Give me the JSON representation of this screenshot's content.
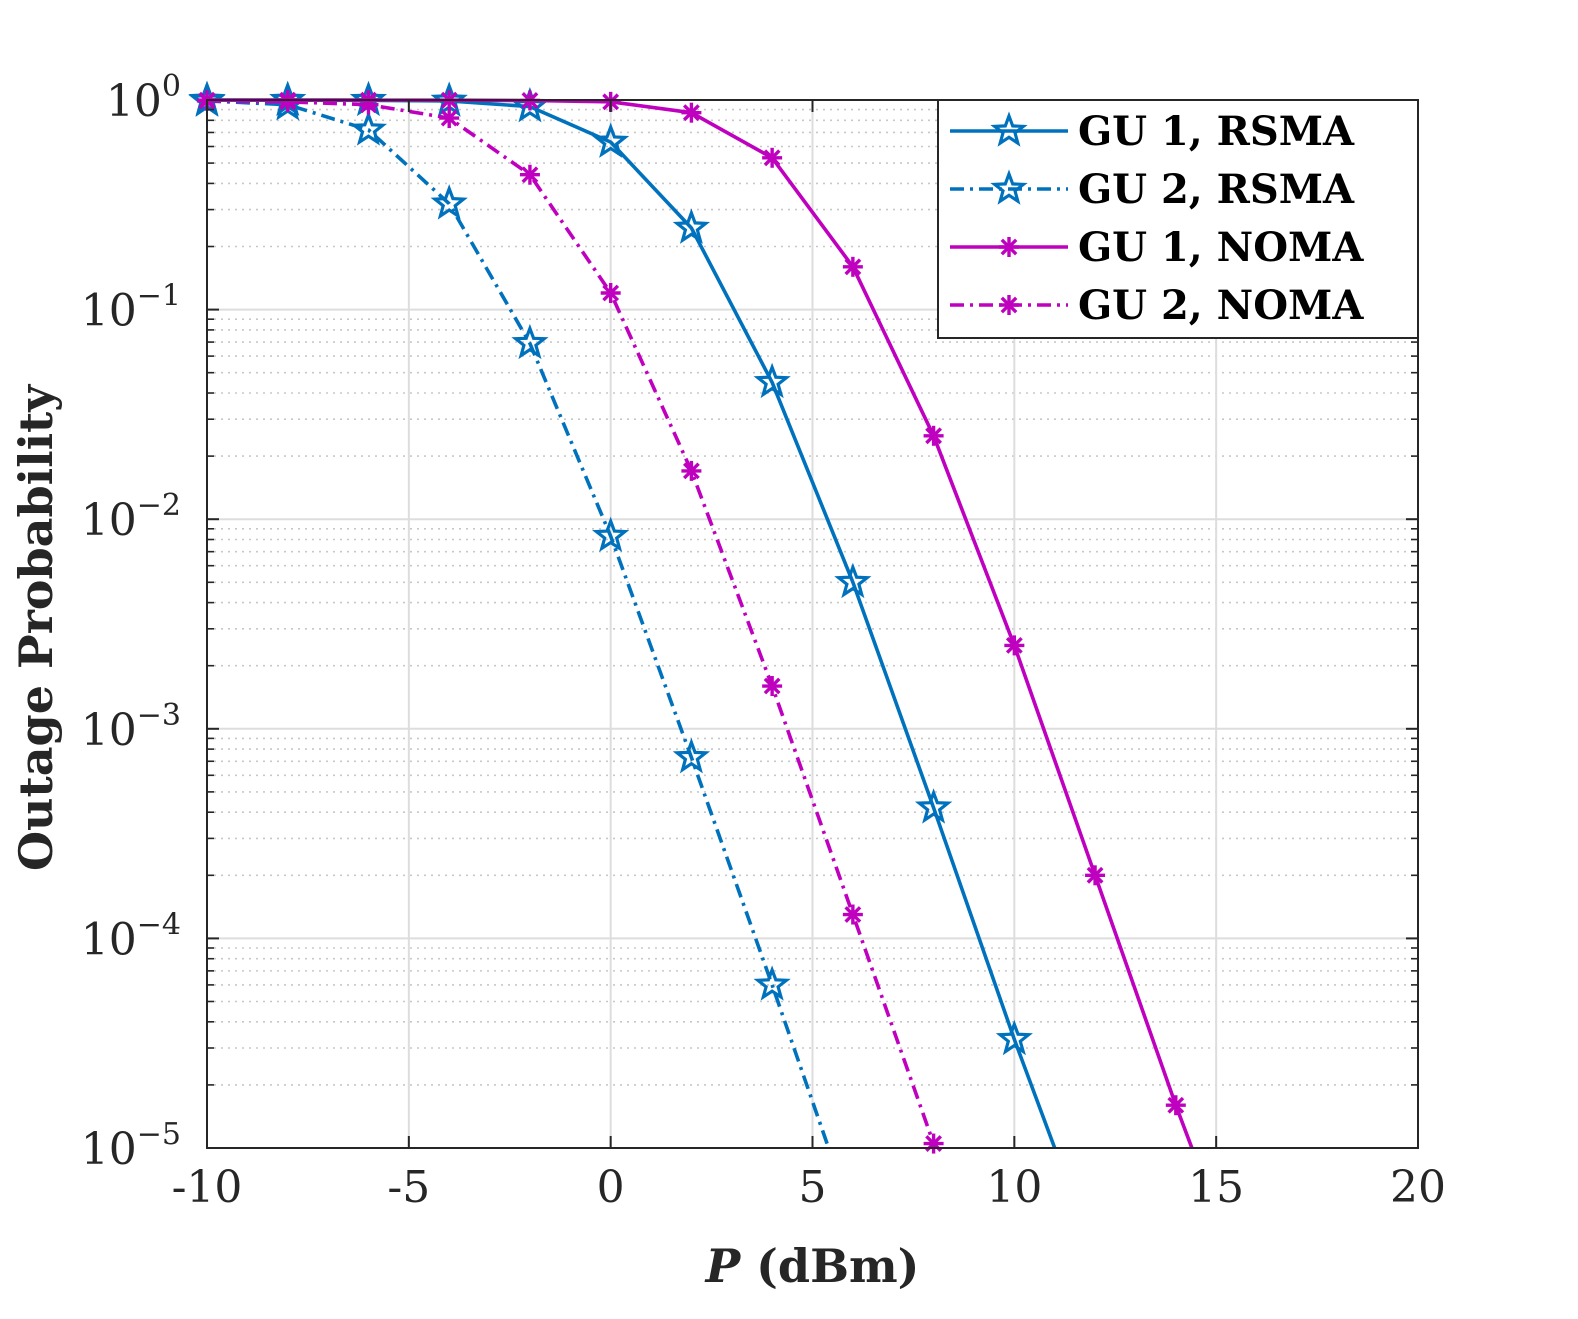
{
  "chart_data": {
    "type": "line",
    "title": "",
    "xlabel_var": "P",
    "xlabel_unit": "(dBm)",
    "ylabel": "Outage Probability",
    "xscale": "linear",
    "yscale": "log",
    "xlim": [
      -10,
      20
    ],
    "ylim": [
      1e-05,
      1
    ],
    "x_ticks": [
      -10,
      -5,
      0,
      5,
      10,
      15,
      20
    ],
    "x_tick_labels": [
      "-10",
      "-5",
      "0",
      "5",
      "10",
      "15",
      "20"
    ],
    "y_ticks": [
      1,
      0.1,
      0.01,
      0.001,
      0.0001,
      1e-05
    ],
    "y_tick_labels": [
      {
        "base": "10",
        "exp": "0"
      },
      {
        "base": "10",
        "exp": "−1"
      },
      {
        "base": "10",
        "exp": "−2"
      },
      {
        "base": "10",
        "exp": "−3"
      },
      {
        "base": "10",
        "exp": "−4"
      },
      {
        "base": "10",
        "exp": "−5"
      }
    ],
    "grid": true,
    "minor_grid": true,
    "legend_position": "top-right",
    "series": [
      {
        "name": "GU 1, RSMA",
        "color": "#0072BD",
        "line_style": "solid",
        "marker": "star",
        "x": [
          -10,
          -8,
          -6,
          -4,
          -2,
          0,
          2,
          4,
          6,
          8,
          10,
          11
        ],
        "y": [
          0.999,
          0.998,
          0.997,
          0.99,
          0.93,
          0.63,
          0.245,
          0.045,
          0.005,
          0.00042,
          3.3e-05,
          1e-05
        ],
        "marker_count": 11
      },
      {
        "name": "GU 2, RSMA",
        "color": "#0072BD",
        "line_style": "dashdot",
        "marker": "star",
        "x": [
          -10,
          -8,
          -6,
          -4,
          -2,
          0,
          2,
          4,
          5.4
        ],
        "y": [
          0.99,
          0.95,
          0.72,
          0.32,
          0.069,
          0.0083,
          0.00073,
          6e-05,
          1e-05
        ],
        "marker_count": 8
      },
      {
        "name": "GU 1, NOMA",
        "color": "#BF00BF",
        "line_style": "solid",
        "marker": "asterisk",
        "x": [
          -10,
          -8,
          -6,
          -4,
          -2,
          0,
          2,
          4,
          6,
          8,
          10,
          12,
          14,
          14.4
        ],
        "y": [
          0.999,
          0.999,
          0.999,
          0.998,
          0.995,
          0.98,
          0.87,
          0.53,
          0.16,
          0.025,
          0.0025,
          0.0002,
          1.6e-05,
          1e-05
        ],
        "marker_count": 13
      },
      {
        "name": "GU 2, NOMA",
        "color": "#BF00BF",
        "line_style": "dashdot",
        "marker": "asterisk",
        "x": [
          -10,
          -8,
          -6,
          -4,
          -2,
          0,
          2,
          4,
          6,
          8
        ],
        "y": [
          0.99,
          0.98,
          0.95,
          0.82,
          0.44,
          0.12,
          0.017,
          0.0016,
          0.00013,
          1.05e-05
        ],
        "marker_count": 10
      }
    ]
  }
}
